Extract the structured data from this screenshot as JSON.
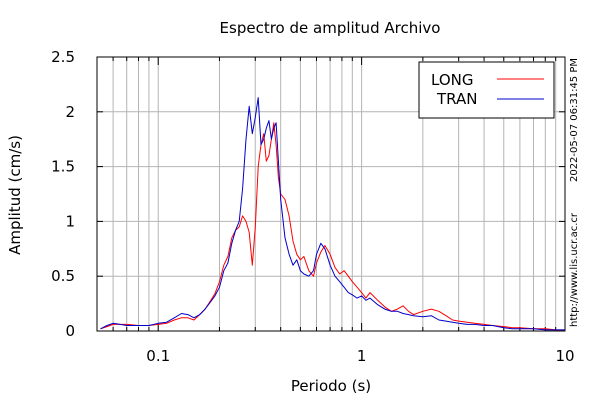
{
  "chart_data": {
    "type": "line",
    "title": "Espectro de amplitud Archivo",
    "xlabel": "Periodo (s)",
    "ylabel": "Amplitud (cm/s)",
    "xscale": "log",
    "xlim": [
      0.05,
      10
    ],
    "ylim": [
      0,
      2.5
    ],
    "grid": true,
    "xticks": [
      0.1,
      1,
      10
    ],
    "xtick_labels": [
      "0.1",
      "1",
      "10"
    ],
    "yticks": [
      0,
      0.5,
      1,
      1.5,
      2,
      2.5
    ],
    "ytick_labels": [
      "0",
      "0.5",
      "1",
      "1.5",
      "2",
      "2.5"
    ],
    "legend_position": "top-right",
    "series": [
      {
        "name": "LONG",
        "color": "#ff0000",
        "x": [
          0.052,
          0.056,
          0.06,
          0.065,
          0.07,
          0.08,
          0.09,
          0.1,
          0.11,
          0.12,
          0.13,
          0.14,
          0.15,
          0.16,
          0.17,
          0.18,
          0.19,
          0.2,
          0.21,
          0.22,
          0.23,
          0.24,
          0.25,
          0.26,
          0.27,
          0.28,
          0.29,
          0.3,
          0.31,
          0.32,
          0.33,
          0.34,
          0.35,
          0.36,
          0.37,
          0.38,
          0.39,
          0.4,
          0.42,
          0.44,
          0.46,
          0.48,
          0.5,
          0.52,
          0.55,
          0.58,
          0.6,
          0.63,
          0.66,
          0.7,
          0.74,
          0.78,
          0.82,
          0.86,
          0.9,
          0.95,
          1.0,
          1.05,
          1.1,
          1.2,
          1.3,
          1.4,
          1.5,
          1.6,
          1.7,
          1.8,
          2.0,
          2.2,
          2.4,
          2.6,
          2.8,
          3.0,
          3.3,
          3.6,
          4.0,
          4.4,
          5.0,
          5.5,
          6.0,
          7.0,
          8.0,
          9.0,
          10.0
        ],
        "y": [
          0.02,
          0.04,
          0.06,
          0.06,
          0.06,
          0.05,
          0.05,
          0.06,
          0.07,
          0.1,
          0.12,
          0.12,
          0.1,
          0.15,
          0.2,
          0.27,
          0.34,
          0.45,
          0.6,
          0.68,
          0.85,
          0.92,
          0.95,
          1.05,
          1.0,
          0.9,
          0.6,
          0.95,
          1.5,
          1.7,
          1.8,
          1.55,
          1.6,
          1.75,
          1.9,
          1.7,
          1.4,
          1.25,
          1.2,
          1.05,
          0.82,
          0.7,
          0.65,
          0.68,
          0.55,
          0.5,
          0.62,
          0.72,
          0.78,
          0.7,
          0.58,
          0.52,
          0.55,
          0.5,
          0.45,
          0.4,
          0.35,
          0.3,
          0.35,
          0.28,
          0.22,
          0.18,
          0.2,
          0.23,
          0.18,
          0.15,
          0.18,
          0.2,
          0.18,
          0.14,
          0.1,
          0.09,
          0.08,
          0.07,
          0.06,
          0.05,
          0.04,
          0.03,
          0.03,
          0.02,
          0.02,
          0.01,
          0.01
        ]
      },
      {
        "name": "TRAN",
        "color": "#0000cc",
        "x": [
          0.052,
          0.056,
          0.06,
          0.065,
          0.07,
          0.08,
          0.09,
          0.1,
          0.11,
          0.12,
          0.13,
          0.14,
          0.15,
          0.16,
          0.17,
          0.18,
          0.19,
          0.2,
          0.21,
          0.22,
          0.23,
          0.24,
          0.25,
          0.26,
          0.27,
          0.28,
          0.29,
          0.3,
          0.31,
          0.32,
          0.33,
          0.34,
          0.35,
          0.36,
          0.37,
          0.38,
          0.39,
          0.4,
          0.42,
          0.44,
          0.46,
          0.48,
          0.5,
          0.52,
          0.55,
          0.58,
          0.6,
          0.63,
          0.66,
          0.7,
          0.74,
          0.78,
          0.82,
          0.86,
          0.9,
          0.95,
          1.0,
          1.05,
          1.1,
          1.2,
          1.3,
          1.4,
          1.5,
          1.6,
          1.7,
          1.8,
          2.0,
          2.2,
          2.4,
          2.6,
          2.8,
          3.0,
          3.3,
          3.6,
          4.0,
          4.4,
          5.0,
          5.5,
          6.0,
          7.0,
          8.0,
          9.0,
          10.0
        ],
        "y": [
          0.02,
          0.05,
          0.07,
          0.06,
          0.05,
          0.05,
          0.05,
          0.07,
          0.08,
          0.12,
          0.16,
          0.15,
          0.12,
          0.15,
          0.2,
          0.26,
          0.32,
          0.4,
          0.55,
          0.62,
          0.8,
          0.92,
          1.0,
          1.3,
          1.75,
          2.05,
          1.8,
          1.95,
          2.13,
          1.7,
          1.75,
          1.85,
          1.92,
          1.75,
          1.85,
          1.9,
          1.55,
          1.2,
          0.85,
          0.7,
          0.6,
          0.65,
          0.55,
          0.52,
          0.5,
          0.55,
          0.7,
          0.8,
          0.75,
          0.6,
          0.5,
          0.45,
          0.4,
          0.35,
          0.33,
          0.3,
          0.32,
          0.28,
          0.3,
          0.24,
          0.2,
          0.18,
          0.18,
          0.16,
          0.15,
          0.14,
          0.13,
          0.14,
          0.1,
          0.09,
          0.08,
          0.07,
          0.06,
          0.06,
          0.05,
          0.05,
          0.03,
          0.02,
          0.02,
          0.02,
          0.01,
          0.01,
          0.01
        ]
      }
    ]
  },
  "side_notes": {
    "timestamp": "2022-05-07 06:31:45 PM",
    "url": "http://www.lis.ucr.ac.cr"
  }
}
